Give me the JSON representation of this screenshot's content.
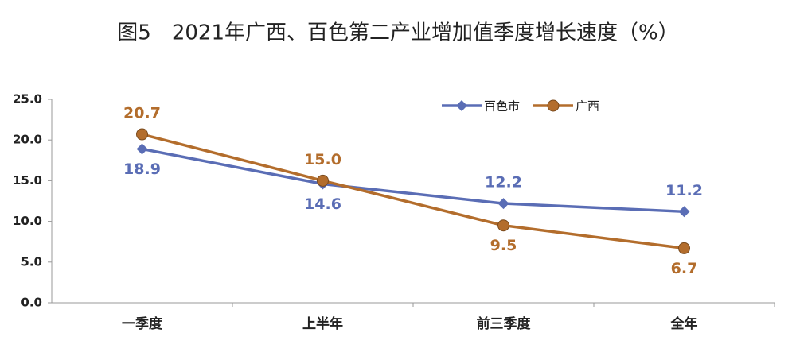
{
  "chart_data": {
    "type": "line",
    "title": "图5　2021年广西、百色第二产业增加值季度增长速度（%）",
    "categories": [
      "一季度",
      "上半年",
      "前三季度",
      "全年"
    ],
    "series": [
      {
        "name": "百色市",
        "color": "#5a6db5",
        "marker": "diamond",
        "values": [
          18.9,
          14.6,
          12.2,
          11.2
        ]
      },
      {
        "name": "广西",
        "color": "#b36d2c",
        "marker": "circle",
        "values": [
          20.7,
          15.0,
          9.5,
          6.7
        ],
        "value_labels": [
          "20.7",
          "15.0",
          "9.5",
          "6.7"
        ]
      }
    ],
    "ylim": [
      0,
      25
    ],
    "yticks": [
      {
        "value": 0,
        "label": "0.0"
      },
      {
        "value": 5,
        "label": "5.0"
      },
      {
        "value": 10,
        "label": "10.0"
      },
      {
        "value": 15,
        "label": "15.0"
      },
      {
        "value": 20,
        "label": "20.0"
      },
      {
        "value": 25,
        "label": "25.0"
      }
    ],
    "grid": false
  }
}
